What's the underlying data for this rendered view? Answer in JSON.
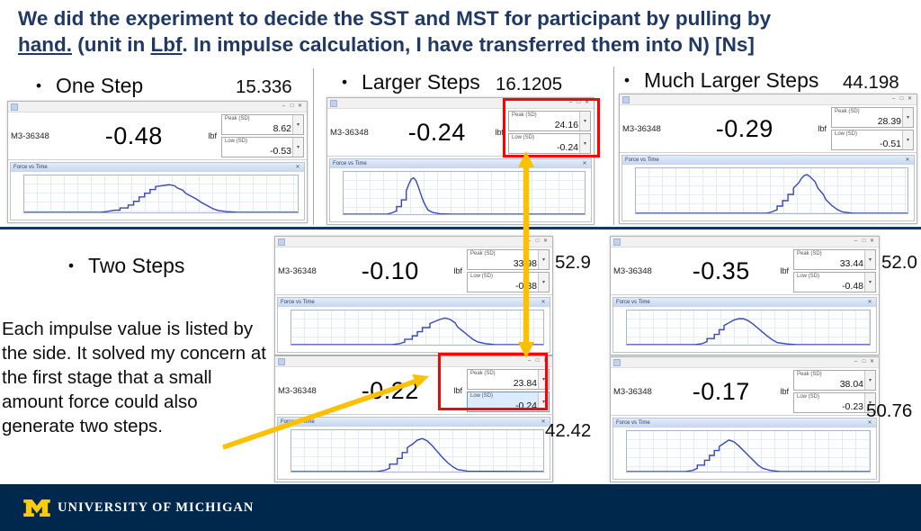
{
  "title": {
    "line1": "We did the experiment to decide the SST and MST for participant by pulling by",
    "l2a": "hand.",
    "l2b": " (unit in ",
    "l2c": "Lbf",
    "l2d": ". In impulse calculation, I have transferred them into N) [Ns]"
  },
  "colors": {
    "navy": "#1f3864",
    "divider": "#17365d",
    "red": "#ff0000",
    "gold": "#ffc000",
    "footer_bg": "#00274c",
    "maize": "#ffcb05",
    "curve": "#3847b6"
  },
  "sections": {
    "bullet": "•",
    "one_step": {
      "label": "One Step",
      "impulse": "15.336"
    },
    "larger_steps": {
      "label": "Larger Steps",
      "impulse": "16.1205"
    },
    "much_larger_steps": {
      "label": "Much Larger Steps",
      "impulse": "44.198"
    },
    "two_steps": {
      "label": "Two Steps"
    }
  },
  "note": "Each impulse value is listed by the side. It solved my concern at the first stage that a small amount force could also generate two steps.",
  "chrome": {
    "minimize": "–",
    "maximize": "□",
    "close": "✕",
    "caret": "▾"
  },
  "chart": {
    "title": "Force vs Time"
  },
  "windows": {
    "one_step": {
      "device": "M3-36348",
      "reading": "-0.48",
      "unit": "lbf",
      "peak_label": "Peak (SD)",
      "peak": "8.62",
      "low_label": "Low (SD)",
      "low": "-0.53",
      "curve": [
        [
          0,
          0
        ],
        [
          28,
          0
        ],
        [
          30,
          2
        ],
        [
          33,
          6
        ],
        [
          35,
          6
        ],
        [
          35,
          12
        ],
        [
          38,
          12
        ],
        [
          38,
          20
        ],
        [
          40,
          20
        ],
        [
          40,
          30
        ],
        [
          42,
          30
        ],
        [
          42,
          42
        ],
        [
          44,
          42
        ],
        [
          44,
          52
        ],
        [
          46,
          52
        ],
        [
          46,
          62
        ],
        [
          48,
          62
        ],
        [
          48,
          70
        ],
        [
          51,
          73
        ],
        [
          53,
          75
        ],
        [
          55,
          72
        ],
        [
          56,
          66
        ],
        [
          58,
          60
        ],
        [
          59,
          52
        ],
        [
          61,
          44
        ],
        [
          63,
          36
        ],
        [
          65,
          26
        ],
        [
          67,
          18
        ],
        [
          69,
          10
        ],
        [
          71,
          5
        ],
        [
          74,
          2
        ],
        [
          78,
          0
        ],
        [
          100,
          0
        ]
      ]
    },
    "larger": {
      "device": "M3-36348",
      "reading": "-0.24",
      "unit": "lbf",
      "peak_label": "Peak (SD)",
      "peak": "24.16",
      "low_label": "Low (SD)",
      "low": "-0.24",
      "curve": [
        [
          0,
          0
        ],
        [
          18,
          0
        ],
        [
          20,
          3
        ],
        [
          22,
          8
        ],
        [
          22,
          18
        ],
        [
          24,
          18
        ],
        [
          24,
          34
        ],
        [
          26,
          34
        ],
        [
          26,
          55
        ],
        [
          27,
          70
        ],
        [
          28,
          82
        ],
        [
          29,
          86
        ],
        [
          30,
          80
        ],
        [
          31,
          65
        ],
        [
          32,
          48
        ],
        [
          33,
          32
        ],
        [
          34,
          20
        ],
        [
          35,
          10
        ],
        [
          37,
          4
        ],
        [
          40,
          1
        ],
        [
          45,
          0
        ],
        [
          100,
          0
        ]
      ]
    },
    "much_larger": {
      "device": "M3-36348",
      "reading": "-0.29",
      "unit": "lbf",
      "peak_label": "Peak (SD)",
      "peak": "28.39",
      "low_label": "Low (SD)",
      "low": "-0.51",
      "curve": [
        [
          0,
          0
        ],
        [
          48,
          0
        ],
        [
          50,
          3
        ],
        [
          52,
          8
        ],
        [
          52,
          16
        ],
        [
          54,
          16
        ],
        [
          54,
          28
        ],
        [
          56,
          28
        ],
        [
          56,
          42
        ],
        [
          58,
          42
        ],
        [
          58,
          56
        ],
        [
          60,
          68
        ],
        [
          61,
          78
        ],
        [
          62,
          84
        ],
        [
          63,
          86
        ],
        [
          64,
          82
        ],
        [
          66,
          70
        ],
        [
          67,
          56
        ],
        [
          69,
          42
        ],
        [
          70,
          30
        ],
        [
          72,
          18
        ],
        [
          74,
          9
        ],
        [
          76,
          3
        ],
        [
          80,
          0
        ],
        [
          100,
          0
        ]
      ]
    },
    "two_a": {
      "device": "M3-36348",
      "reading": "-0.10",
      "unit": "lbf",
      "peak_label": "Peak (SD)",
      "peak": "33.98",
      "low_label": "Low (SD)",
      "low": "-0.38",
      "impulse": "52.9",
      "curve": [
        [
          0,
          0
        ],
        [
          40,
          0
        ],
        [
          43,
          3
        ],
        [
          45,
          8
        ],
        [
          45,
          16
        ],
        [
          48,
          16
        ],
        [
          48,
          26
        ],
        [
          50,
          26
        ],
        [
          50,
          38
        ],
        [
          52,
          38
        ],
        [
          52,
          50
        ],
        [
          55,
          50
        ],
        [
          55,
          62
        ],
        [
          57,
          68
        ],
        [
          59,
          74
        ],
        [
          61,
          78
        ],
        [
          63,
          74
        ],
        [
          65,
          64
        ],
        [
          66,
          52
        ],
        [
          68,
          40
        ],
        [
          70,
          28
        ],
        [
          72,
          16
        ],
        [
          74,
          8
        ],
        [
          77,
          3
        ],
        [
          81,
          0
        ],
        [
          100,
          0
        ]
      ]
    },
    "two_b": {
      "device": "M3-36348",
      "reading": "-0.22",
      "unit": "lbf",
      "peak_label": "Peak (SD)",
      "peak": "23.84",
      "low_label": "Low (SD)",
      "low": "-0.24",
      "impulse": "42.42",
      "curve": [
        [
          0,
          0
        ],
        [
          34,
          0
        ],
        [
          37,
          3
        ],
        [
          39,
          8
        ],
        [
          39,
          18
        ],
        [
          42,
          18
        ],
        [
          42,
          32
        ],
        [
          44,
          32
        ],
        [
          44,
          46
        ],
        [
          46,
          46
        ],
        [
          46,
          58
        ],
        [
          48,
          66
        ],
        [
          50,
          76
        ],
        [
          52,
          80
        ],
        [
          54,
          74
        ],
        [
          56,
          62
        ],
        [
          58,
          48
        ],
        [
          60,
          34
        ],
        [
          62,
          22
        ],
        [
          64,
          12
        ],
        [
          66,
          5
        ],
        [
          70,
          1
        ],
        [
          100,
          0
        ]
      ]
    },
    "two_c": {
      "device": "M3-36348",
      "reading": "-0.35",
      "unit": "lbf",
      "peak_label": "Peak (SD)",
      "peak": "33.44",
      "low_label": "Low (SD)",
      "low": "-0.48",
      "impulse": "52.0",
      "curve": [
        [
          0,
          0
        ],
        [
          28,
          0
        ],
        [
          31,
          3
        ],
        [
          33,
          9
        ],
        [
          33,
          18
        ],
        [
          36,
          18
        ],
        [
          36,
          30
        ],
        [
          38,
          30
        ],
        [
          38,
          44
        ],
        [
          40,
          44
        ],
        [
          40,
          56
        ],
        [
          42,
          64
        ],
        [
          44,
          72
        ],
        [
          46,
          76
        ],
        [
          48,
          76
        ],
        [
          50,
          70
        ],
        [
          52,
          60
        ],
        [
          54,
          48
        ],
        [
          56,
          36
        ],
        [
          58,
          24
        ],
        [
          60,
          14
        ],
        [
          62,
          6
        ],
        [
          66,
          2
        ],
        [
          70,
          0
        ],
        [
          100,
          0
        ]
      ]
    },
    "two_d": {
      "device": "M3-36348",
      "reading": "-0.17",
      "unit": "lbf",
      "peak_label": "Peak (SD)",
      "peak": "38.04",
      "low_label": "Low (SD)",
      "low": "-0.23",
      "impulse": "50.76",
      "curve": [
        [
          0,
          0
        ],
        [
          24,
          0
        ],
        [
          27,
          3
        ],
        [
          29,
          8
        ],
        [
          29,
          16
        ],
        [
          32,
          16
        ],
        [
          32,
          28
        ],
        [
          34,
          28
        ],
        [
          34,
          40
        ],
        [
          36,
          40
        ],
        [
          36,
          52
        ],
        [
          38,
          52
        ],
        [
          38,
          62
        ],
        [
          40,
          70
        ],
        [
          42,
          78
        ],
        [
          44,
          74
        ],
        [
          46,
          64
        ],
        [
          48,
          52
        ],
        [
          50,
          40
        ],
        [
          52,
          28
        ],
        [
          54,
          16
        ],
        [
          56,
          8
        ],
        [
          59,
          3
        ],
        [
          63,
          0
        ],
        [
          100,
          0
        ]
      ]
    }
  },
  "footer": {
    "org": "UNIVERSITY OF MICHIGAN"
  }
}
